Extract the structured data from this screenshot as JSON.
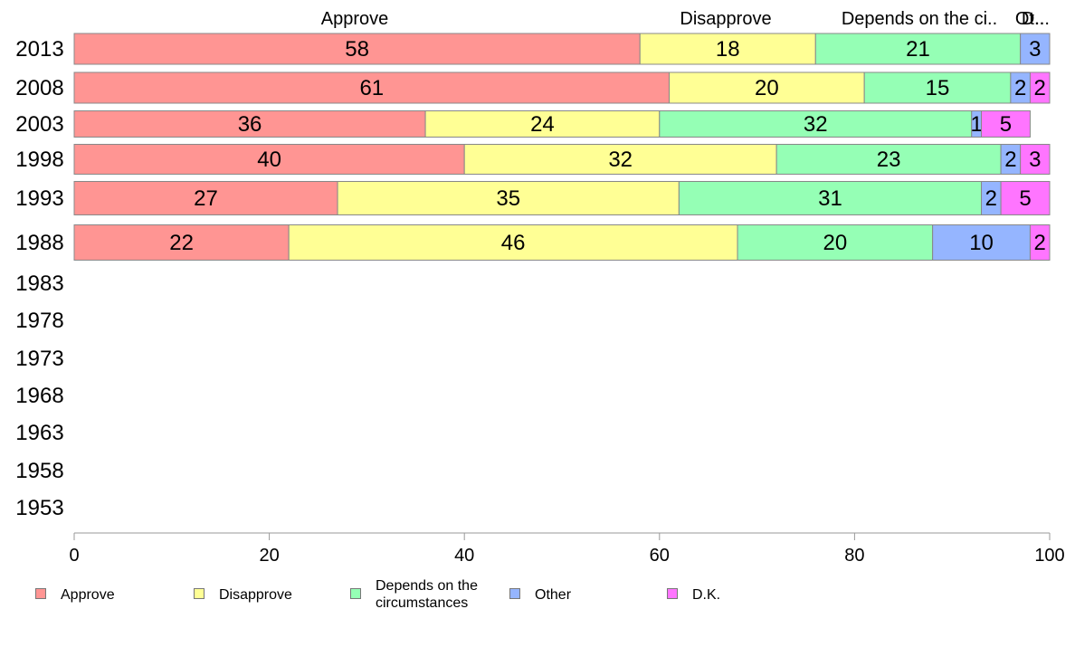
{
  "chart_data": {
    "type": "bar",
    "orientation": "horizontal",
    "stacked": true,
    "categories": [
      "2013",
      "2008",
      "2003",
      "1998",
      "1993",
      "1988",
      "1983",
      "1978",
      "1973",
      "1968",
      "1963",
      "1958",
      "1953"
    ],
    "series": [
      {
        "name": "Approve",
        "color": "#ff9593",
        "values": [
          58,
          61,
          36,
          40,
          27,
          22,
          null,
          null,
          null,
          null,
          null,
          null,
          null
        ]
      },
      {
        "name": "Disapprove",
        "color": "#ffff95",
        "values": [
          18,
          20,
          24,
          32,
          35,
          46,
          null,
          null,
          null,
          null,
          null,
          null,
          null
        ]
      },
      {
        "name": "Depends on the circumstances",
        "color": "#95ffb5",
        "values": [
          21,
          15,
          32,
          23,
          31,
          20,
          null,
          null,
          null,
          null,
          null,
          null,
          null
        ]
      },
      {
        "name": "Other",
        "color": "#95b5ff",
        "values": [
          3,
          2,
          1,
          2,
          2,
          10,
          null,
          null,
          null,
          null,
          null,
          null,
          null
        ]
      },
      {
        "name": "D.K.",
        "color": "#ff75ff",
        "values": [
          0,
          2,
          5,
          3,
          5,
          2,
          null,
          null,
          null,
          null,
          null,
          null,
          null
        ]
      }
    ],
    "top_labels": [
      "Approve",
      "Disapprove",
      "Depends on the ci..",
      "Ot..",
      "D..."
    ],
    "xlim": [
      0,
      100
    ],
    "xticks": [
      0,
      20,
      40,
      60,
      80,
      100
    ],
    "xlabel": "",
    "ylabel": "",
    "title": "",
    "grid": false,
    "legend_position": "bottom",
    "legend_labels": [
      {
        "text": "Approve",
        "color": "#ff9593"
      },
      {
        "text": "Disapprove",
        "color": "#ffff95"
      },
      {
        "text": "Depends on the\ncircumstances",
        "color": "#95ffb5"
      },
      {
        "text": "Other",
        "color": "#95b5ff"
      },
      {
        "text": "D.K.",
        "color": "#ff75ff"
      }
    ]
  }
}
